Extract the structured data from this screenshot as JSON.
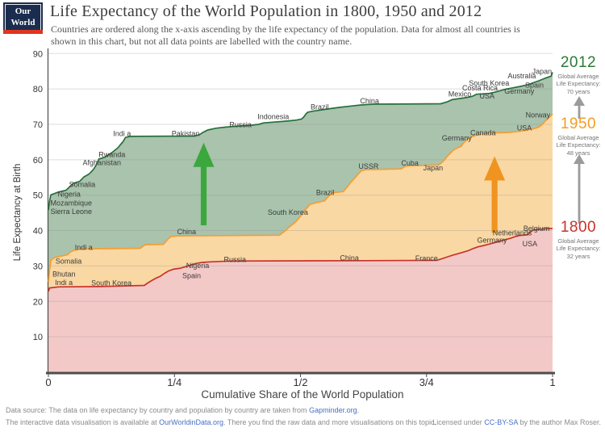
{
  "logo": {
    "line1": "Our World",
    "line2": "in Data"
  },
  "header": {
    "title": "Life Expectancy of the World Population in 1800, 1950 and 2012",
    "subtitle_line1": "Countries are ordered along the x-axis ascending by the life expectancy of the population. Data for almost all countries is",
    "subtitle_line2": "shown in this chart, but not all data points are labelled with the country name."
  },
  "colors": {
    "accent_2012": "#2b7a38",
    "accent_1950": "#f49e23",
    "accent_1800": "#cb312a",
    "link": "#4a6fc4",
    "gray_arrow": "#9b9b9b"
  },
  "annotations": {
    "a2012": {
      "year": "2012",
      "l1": "Global Average",
      "l2": "Life Expectancy:",
      "l3": "70 years"
    },
    "a1950": {
      "year": "1950",
      "l1": "Global Average",
      "l2": "Life Expectancy:",
      "l3": "48 years"
    },
    "a1800": {
      "year": "1800",
      "l1": "Global Average",
      "l2": "Life Expectancy:",
      "l3": "32 years"
    }
  },
  "chart_data": {
    "type": "area",
    "title": "Life Expectancy of the World Population in 1800, 1950 and 2012",
    "xlabel": "Cumulative Share of the World Population",
    "ylabel": "Life Expectancy at Birth",
    "ylim": [
      0,
      90
    ],
    "y_ticks": [
      10,
      20,
      30,
      40,
      50,
      60,
      70,
      80,
      90
    ],
    "x_ticks": [
      {
        "f": 0,
        "label": "0"
      },
      {
        "f": 0.25,
        "label": "1/4"
      },
      {
        "f": 0.5,
        "label": "1/2"
      },
      {
        "f": 0.75,
        "label": "3/4"
      },
      {
        "f": 1,
        "label": "1"
      }
    ],
    "series": [
      {
        "name": "1800",
        "line": "#c8332b",
        "fill": "#f3c9c8",
        "points": [
          [
            0,
            22.8
          ],
          [
            0.002,
            23.8
          ],
          [
            0.02,
            24.1
          ],
          [
            0.1,
            24.2
          ],
          [
            0.19,
            24.5
          ],
          [
            0.198,
            25.3
          ],
          [
            0.206,
            26.0
          ],
          [
            0.214,
            26.6
          ],
          [
            0.222,
            27.1
          ],
          [
            0.23,
            27.9
          ],
          [
            0.238,
            28.6
          ],
          [
            0.248,
            29.1
          ],
          [
            0.262,
            29.4
          ],
          [
            0.272,
            29.8
          ],
          [
            0.283,
            30.3
          ],
          [
            0.292,
            30.7
          ],
          [
            0.305,
            31.0
          ],
          [
            0.325,
            31.2
          ],
          [
            0.36,
            31.4
          ],
          [
            0.62,
            31.5
          ],
          [
            0.77,
            31.6
          ],
          [
            0.78,
            32.0
          ],
          [
            0.792,
            32.6
          ],
          [
            0.803,
            33.1
          ],
          [
            0.818,
            33.7
          ],
          [
            0.832,
            34.3
          ],
          [
            0.842,
            34.9
          ],
          [
            0.852,
            35.4
          ],
          [
            0.864,
            35.8
          ],
          [
            0.875,
            36.2
          ],
          [
            0.888,
            36.7
          ],
          [
            0.902,
            37.3
          ],
          [
            0.916,
            37.8
          ],
          [
            0.926,
            38.3
          ],
          [
            0.934,
            38.6
          ],
          [
            0.95,
            38.8
          ],
          [
            0.956,
            39.6
          ],
          [
            0.962,
            40.2
          ],
          [
            0.975,
            40.4
          ],
          [
            1,
            40.6
          ]
        ],
        "labels": [
          {
            "t": "Bhutan",
            "x": 0.008,
            "v": 27.7,
            "a": "start"
          },
          {
            "t": "Indi a",
            "x": 0.013,
            "v": 25.3,
            "a": "start"
          },
          {
            "t": "South Korea",
            "x": 0.125,
            "v": 25.2
          },
          {
            "t": "Spain",
            "x": 0.284,
            "v": 27.2
          },
          {
            "t": "Nigeria",
            "x": 0.296,
            "v": 30.1
          },
          {
            "t": "Russia",
            "x": 0.37,
            "v": 31.8
          },
          {
            "t": "China",
            "x": 0.597,
            "v": 32.3
          },
          {
            "t": "France",
            "x": 0.75,
            "v": 32.2
          },
          {
            "t": "Germany",
            "x": 0.88,
            "v": 37.3
          },
          {
            "t": "Netherlands",
            "x": 0.92,
            "v": 39.3
          },
          {
            "t": "Belgium",
            "x": 0.968,
            "v": 40.6
          },
          {
            "t": "USA",
            "x": 0.955,
            "v": 36.2
          }
        ]
      },
      {
        "name": "1950",
        "line": "#f49e34",
        "fill": "#fad8a3",
        "points": [
          [
            0,
            25.5
          ],
          [
            0.002,
            28.5
          ],
          [
            0.005,
            31.6
          ],
          [
            0.012,
            32.4
          ],
          [
            0.038,
            33.2
          ],
          [
            0.043,
            33.9
          ],
          [
            0.05,
            34.4
          ],
          [
            0.065,
            34.8
          ],
          [
            0.12,
            34.9
          ],
          [
            0.182,
            35.0
          ],
          [
            0.187,
            35.5
          ],
          [
            0.192,
            36.0
          ],
          [
            0.228,
            36.1
          ],
          [
            0.233,
            36.9
          ],
          [
            0.238,
            37.7
          ],
          [
            0.243,
            38.3
          ],
          [
            0.255,
            38.5
          ],
          [
            0.458,
            38.7
          ],
          [
            0.464,
            39.3
          ],
          [
            0.47,
            40.0
          ],
          [
            0.477,
            40.9
          ],
          [
            0.484,
            41.7
          ],
          [
            0.49,
            42.4
          ],
          [
            0.497,
            43.5
          ],
          [
            0.503,
            44.6
          ],
          [
            0.508,
            45.6
          ],
          [
            0.514,
            46.6
          ],
          [
            0.519,
            47.4
          ],
          [
            0.532,
            47.9
          ],
          [
            0.548,
            48.4
          ],
          [
            0.553,
            49.3
          ],
          [
            0.559,
            50.2
          ],
          [
            0.564,
            50.7
          ],
          [
            0.585,
            51.0
          ],
          [
            0.59,
            51.9
          ],
          [
            0.596,
            52.9
          ],
          [
            0.601,
            53.8
          ],
          [
            0.606,
            54.6
          ],
          [
            0.611,
            55.4
          ],
          [
            0.616,
            56.2
          ],
          [
            0.621,
            56.9
          ],
          [
            0.63,
            57.2
          ],
          [
            0.7,
            57.4
          ],
          [
            0.706,
            58.0
          ],
          [
            0.713,
            58.3
          ],
          [
            0.774,
            58.5
          ],
          [
            0.781,
            59.3
          ],
          [
            0.787,
            60.2
          ],
          [
            0.792,
            61.1
          ],
          [
            0.798,
            62.0
          ],
          [
            0.804,
            62.8
          ],
          [
            0.812,
            63.4
          ],
          [
            0.819,
            63.8
          ],
          [
            0.823,
            64.7
          ],
          [
            0.829,
            65.5
          ],
          [
            0.836,
            66.2
          ],
          [
            0.846,
            66.8
          ],
          [
            0.857,
            67.2
          ],
          [
            0.872,
            67.5
          ],
          [
            0.912,
            67.7
          ],
          [
            0.932,
            68.0
          ],
          [
            0.947,
            68.3
          ],
          [
            0.957,
            68.6
          ],
          [
            0.966,
            68.9
          ],
          [
            0.975,
            69.4
          ],
          [
            0.981,
            70.2
          ],
          [
            0.986,
            71.0
          ],
          [
            0.991,
            71.7
          ],
          [
            0.996,
            72.3
          ],
          [
            1,
            73.0
          ]
        ],
        "labels": [
          {
            "t": "Somalia",
            "x": 0.04,
            "v": 31.4
          },
          {
            "t": "Indi a",
            "x": 0.07,
            "v": 35.2
          },
          {
            "t": "China",
            "x": 0.274,
            "v": 39.7
          },
          {
            "t": "South Korea",
            "x": 0.475,
            "v": 45.2
          },
          {
            "t": "Brazil",
            "x": 0.549,
            "v": 50.7
          },
          {
            "t": "USSR",
            "x": 0.635,
            "v": 58.1
          },
          {
            "t": "Cuba",
            "x": 0.717,
            "v": 59.0
          },
          {
            "t": "Japan",
            "x": 0.763,
            "v": 57.7
          },
          {
            "t": "Germany",
            "x": 0.81,
            "v": 66.1
          },
          {
            "t": "Canada",
            "x": 0.862,
            "v": 67.6
          },
          {
            "t": "USA",
            "x": 0.944,
            "v": 69.0
          },
          {
            "t": "Norway",
            "x": 0.971,
            "v": 72.6
          }
        ]
      },
      {
        "name": "2012",
        "line": "#26703a",
        "fill": "#a9c3ad",
        "points": [
          [
            0,
            45.8
          ],
          [
            0.002,
            48.2
          ],
          [
            0.005,
            50.1
          ],
          [
            0.02,
            50.9
          ],
          [
            0.035,
            51.4
          ],
          [
            0.044,
            52.6
          ],
          [
            0.05,
            53.4
          ],
          [
            0.062,
            53.9
          ],
          [
            0.07,
            55.1
          ],
          [
            0.08,
            55.9
          ],
          [
            0.085,
            56.6
          ],
          [
            0.09,
            57.4
          ],
          [
            0.095,
            58.6
          ],
          [
            0.1,
            60.2
          ],
          [
            0.112,
            60.7
          ],
          [
            0.118,
            61.3
          ],
          [
            0.125,
            61.9
          ],
          [
            0.132,
            62.7
          ],
          [
            0.138,
            63.4
          ],
          [
            0.143,
            64.3
          ],
          [
            0.148,
            65.1
          ],
          [
            0.153,
            66.3
          ],
          [
            0.162,
            66.6
          ],
          [
            0.29,
            66.7
          ],
          [
            0.3,
            67.1
          ],
          [
            0.306,
            67.7
          ],
          [
            0.316,
            68.4
          ],
          [
            0.332,
            68.9
          ],
          [
            0.35,
            69.2
          ],
          [
            0.375,
            69.5
          ],
          [
            0.405,
            69.8
          ],
          [
            0.417,
            70.0
          ],
          [
            0.427,
            70.4
          ],
          [
            0.445,
            70.6
          ],
          [
            0.462,
            70.8
          ],
          [
            0.478,
            71.0
          ],
          [
            0.492,
            71.2
          ],
          [
            0.502,
            71.5
          ],
          [
            0.506,
            72.0
          ],
          [
            0.51,
            72.8
          ],
          [
            0.514,
            73.4
          ],
          [
            0.523,
            73.7
          ],
          [
            0.552,
            74.3
          ],
          [
            0.578,
            74.8
          ],
          [
            0.602,
            75.2
          ],
          [
            0.622,
            75.5
          ],
          [
            0.645,
            75.7
          ],
          [
            0.778,
            75.8
          ],
          [
            0.792,
            76.4
          ],
          [
            0.801,
            77.0
          ],
          [
            0.816,
            77.3
          ],
          [
            0.831,
            77.6
          ],
          [
            0.841,
            77.9
          ],
          [
            0.849,
            78.5
          ],
          [
            0.873,
            78.7
          ],
          [
            0.886,
            79.1
          ],
          [
            0.896,
            79.5
          ],
          [
            0.906,
            79.9
          ],
          [
            0.921,
            80.3
          ],
          [
            0.936,
            80.7
          ],
          [
            0.951,
            81.2
          ],
          [
            0.963,
            81.8
          ],
          [
            0.973,
            82.3
          ],
          [
            0.983,
            82.9
          ],
          [
            0.991,
            83.3
          ],
          [
            0.997,
            83.6
          ],
          [
            1,
            84.7
          ]
        ],
        "labels": [
          {
            "t": "Mozambique",
            "x": 0.004,
            "v": 47.8,
            "a": "start"
          },
          {
            "t": "Sierra Leone",
            "x": 0.004,
            "v": 45.4,
            "a": "start"
          },
          {
            "t": "Nigeria",
            "x": 0.041,
            "v": 50.3
          },
          {
            "t": "Somalia",
            "x": 0.067,
            "v": 53.0
          },
          {
            "t": "Afghanistan",
            "x": 0.106,
            "v": 59.2
          },
          {
            "t": "Rwanda",
            "x": 0.126,
            "v": 61.5
          },
          {
            "t": "Indi a",
            "x": 0.146,
            "v": 67.4
          },
          {
            "t": "Pakistan",
            "x": 0.272,
            "v": 67.4
          },
          {
            "t": "Russia",
            "x": 0.381,
            "v": 69.9
          },
          {
            "t": "Indonesia",
            "x": 0.446,
            "v": 72.2
          },
          {
            "t": "Brazil",
            "x": 0.538,
            "v": 74.9
          },
          {
            "t": "China",
            "x": 0.637,
            "v": 76.6
          },
          {
            "t": "Mexico",
            "x": 0.816,
            "v": 78.5
          },
          {
            "t": "Costa Rica",
            "x": 0.856,
            "v": 80.2
          },
          {
            "t": "South Korea",
            "x": 0.874,
            "v": 81.6
          },
          {
            "t": "USA",
            "x": 0.87,
            "v": 78.0
          },
          {
            "t": "Germany",
            "x": 0.934,
            "v": 79.3
          },
          {
            "t": "Spain",
            "x": 0.964,
            "v": 81.0
          },
          {
            "t": "Australia",
            "x": 0.939,
            "v": 83.7
          },
          {
            "t": "Japan",
            "x": 0.979,
            "v": 84.9
          }
        ]
      }
    ],
    "arrows": [
      {
        "x": 0.308,
        "from": 41.5,
        "to": 64.8,
        "color": "#3aa83c"
      },
      {
        "x": 0.885,
        "from": 39.4,
        "to": 61.0,
        "color": "#f09420"
      }
    ],
    "legend_position": "right-annotations",
    "grid": true
  },
  "footer": {
    "line1_prefix": "Data source: The data on life expectancy by country and population by country are taken from ",
    "line1_link": "Gapminder.org.",
    "line2_prefix": "The interactive data visualisation is available at ",
    "line2_link": "OurWorldinData.org",
    "line2_suffix": ". There you find the raw data and more visualisations on this topic.",
    "license_prefix": "Licensed under ",
    "license_link": "CC-BY-SA",
    "license_suffix": " by the author Max Roser."
  }
}
